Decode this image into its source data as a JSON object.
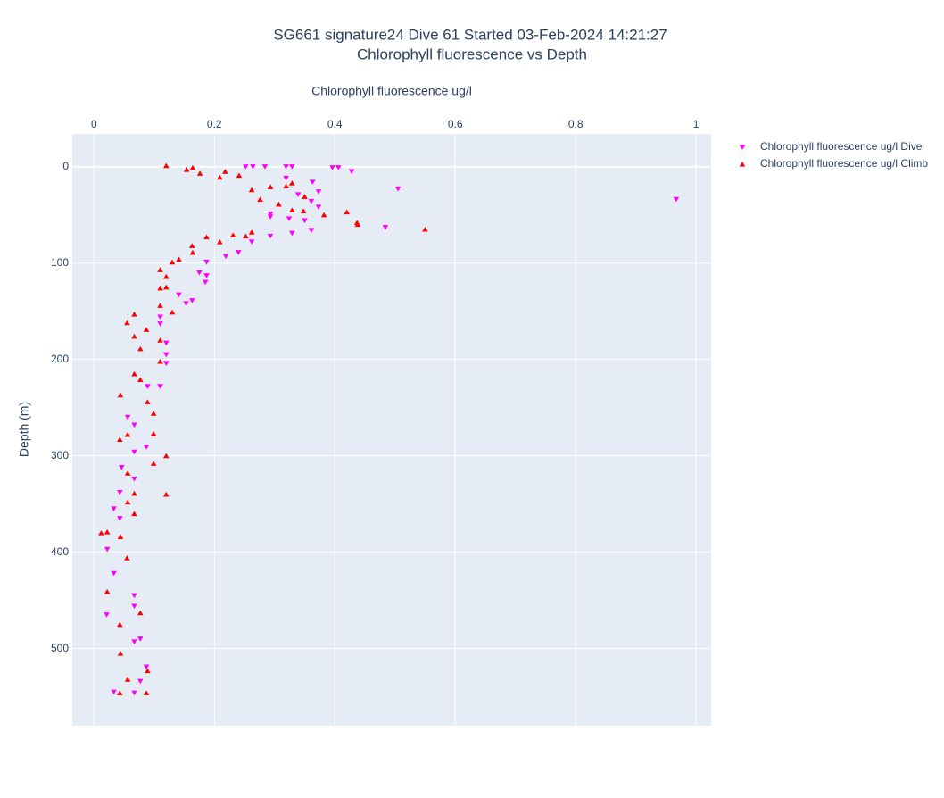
{
  "chart_data": {
    "type": "scatter",
    "title": "SG661 signature24 Dive 61 Started 03-Feb-2024 14:21:27",
    "subtitle": "Chlorophyll fluorescence vs Depth",
    "x_label": "Chlorophyll fluorescence ug/l",
    "y_label": "Depth (m)",
    "xlim": [
      -0.036,
      1.025
    ],
    "ylim": [
      -34,
      580
    ],
    "y_reversed": true,
    "x_axis_side": "top",
    "xticks": [
      0,
      0.2,
      0.4,
      0.6,
      0.8,
      1
    ],
    "yticks": [
      0,
      100,
      200,
      300,
      400,
      500
    ],
    "grid": true,
    "legend": "top-right",
    "series": [
      {
        "name": "Chlorophyll fluorescence ug/l Dive",
        "color": "#ff00ff",
        "marker": "triangle-down",
        "x": [
          0.252,
          0.264,
          0.284,
          0.319,
          0.329,
          0.396,
          0.406,
          0.428,
          0.319,
          0.363,
          0.505,
          0.373,
          0.339,
          0.967,
          0.361,
          0.373,
          0.293,
          0.324,
          0.35,
          0.293,
          0.484,
          0.361,
          0.329,
          0.293,
          0.262,
          0.24,
          0.219,
          0.187,
          0.175,
          0.187,
          0.185,
          0.163,
          0.153,
          0.141,
          0.11,
          0.11,
          0.12,
          0.12,
          0.12,
          0.11,
          0.089,
          0.056,
          0.067,
          0.087,
          0.067,
          0.046,
          0.067,
          0.043,
          0.033,
          0.043,
          0.022,
          0.033,
          0.067,
          0.021,
          0.067,
          0.077,
          0.067,
          0.087,
          0.077,
          0.033,
          0.067
        ],
        "values": [
          0,
          0,
          0,
          0,
          0,
          1,
          1,
          5,
          12,
          16,
          23,
          26,
          29,
          34,
          36,
          42,
          49,
          54,
          56,
          52,
          63,
          66,
          69,
          72,
          78,
          89,
          93,
          99,
          110,
          113,
          120,
          139,
          142,
          133,
          156,
          163,
          183,
          195,
          204,
          228,
          228,
          260,
          268,
          291,
          296,
          312,
          324,
          338,
          355,
          365,
          397,
          422,
          445,
          465,
          456,
          490,
          493,
          519,
          534,
          545,
          546
        ]
      },
      {
        "name": "Chlorophyll fluorescence ug/l Climb",
        "color": "#ff0000",
        "marker": "triangle-up",
        "x": [
          0.12,
          0.154,
          0.164,
          0.176,
          0.209,
          0.218,
          0.241,
          0.293,
          0.262,
          0.319,
          0.329,
          0.35,
          0.276,
          0.307,
          0.329,
          0.348,
          0.382,
          0.42,
          0.437,
          0.438,
          0.55,
          0.262,
          0.252,
          0.231,
          0.187,
          0.209,
          0.163,
          0.164,
          0.141,
          0.13,
          0.11,
          0.12,
          0.12,
          0.11,
          0.11,
          0.13,
          0.067,
          0.055,
          0.087,
          0.067,
          0.11,
          0.077,
          0.11,
          0.067,
          0.077,
          0.044,
          0.089,
          0.099,
          0.056,
          0.099,
          0.043,
          0.12,
          0.099,
          0.056,
          0.12,
          0.067,
          0.056,
          0.067,
          0.022,
          0.044,
          0.012,
          0.055,
          0.022,
          0.077,
          0.043,
          0.044,
          0.089,
          0.056,
          0.087,
          0.043
        ],
        "values": [
          -1,
          3,
          1,
          7,
          11,
          5,
          9,
          21,
          24,
          20,
          17,
          31,
          34,
          39,
          45,
          46,
          50,
          47,
          58,
          60,
          65,
          68,
          72,
          71,
          73,
          78,
          82,
          89,
          96,
          99,
          107,
          114,
          125,
          126,
          144,
          151,
          153,
          162,
          169,
          176,
          180,
          189,
          202,
          215,
          221,
          237,
          244,
          256,
          278,
          277,
          283,
          300,
          308,
          318,
          340,
          339,
          348,
          360,
          379,
          384,
          380,
          406,
          441,
          463,
          475,
          505,
          523,
          532,
          546,
          546
        ]
      }
    ]
  }
}
